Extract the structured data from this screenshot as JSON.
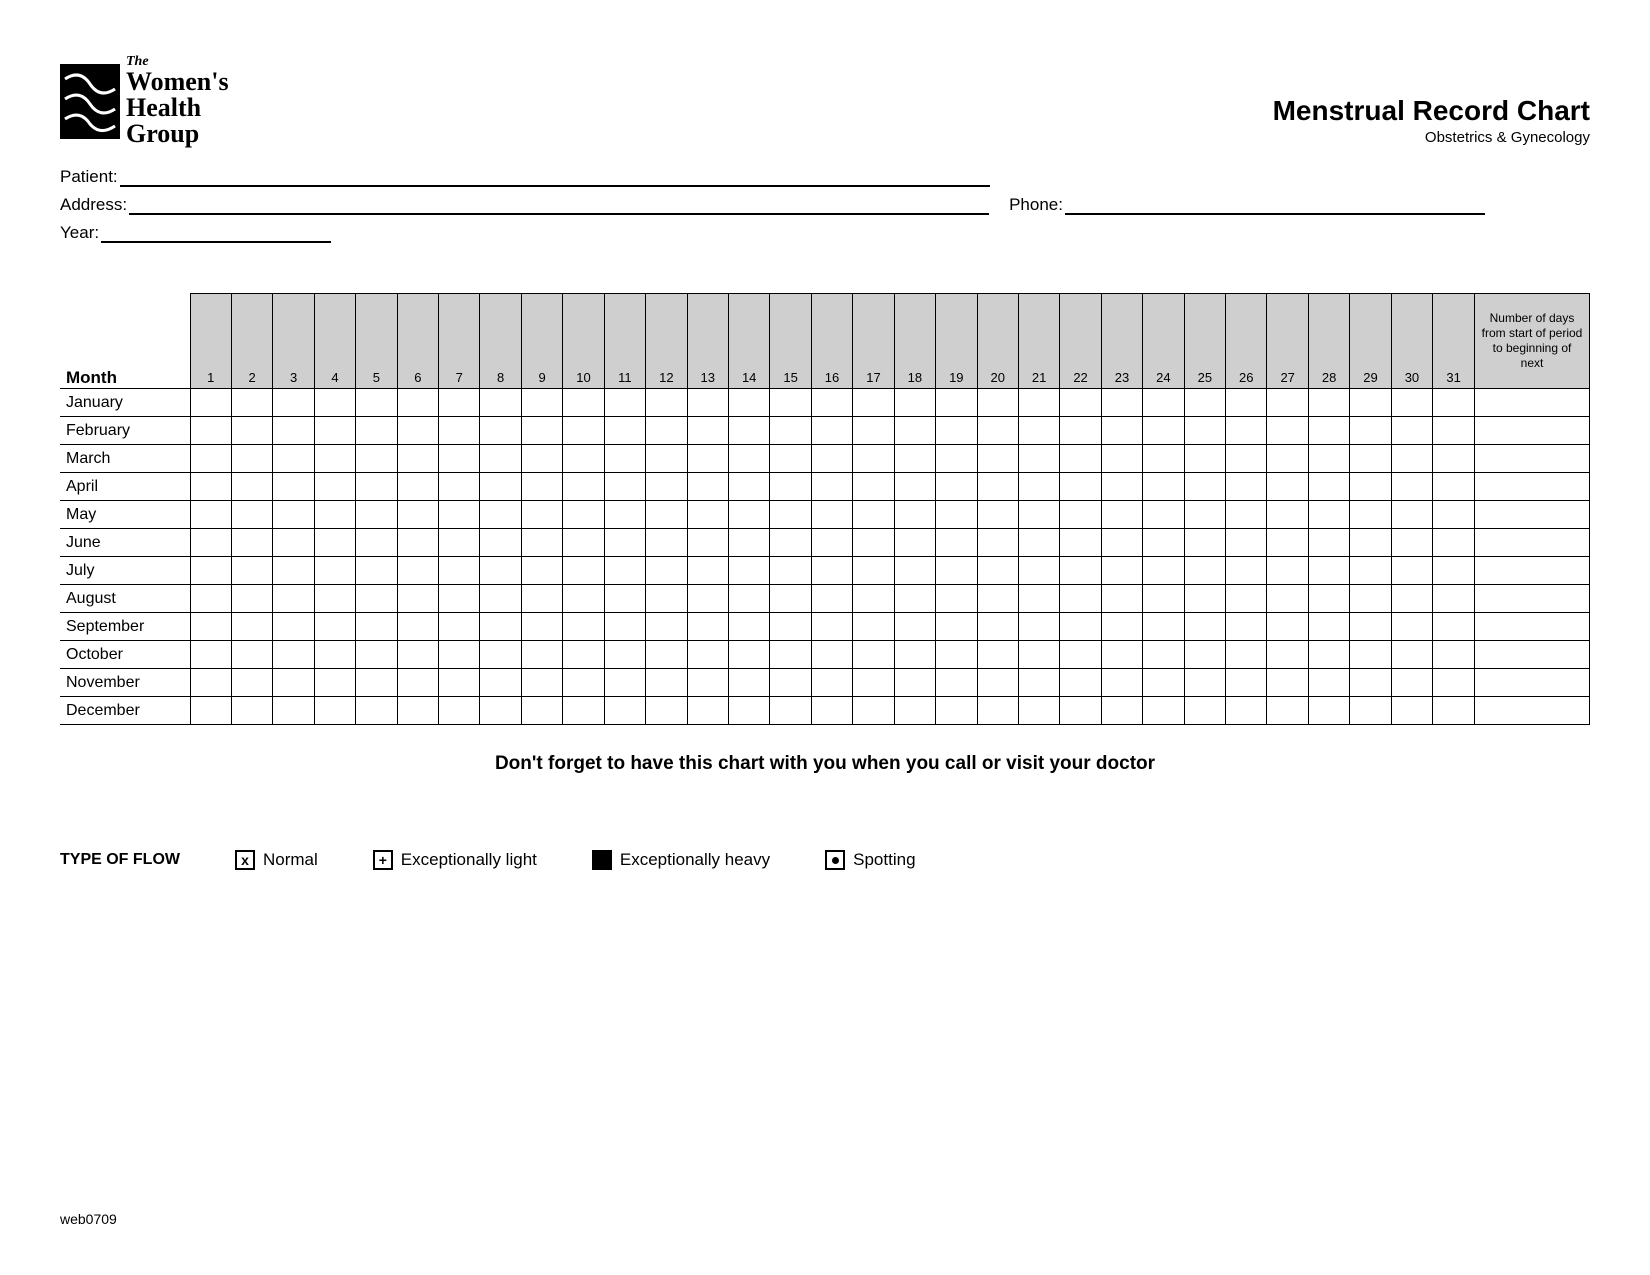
{
  "logo": {
    "line1": "The",
    "line2": "Women's",
    "line3": "Health",
    "line4": "Group"
  },
  "title": "Menstrual Record Chart",
  "subtitle": "Obstetrics & Gynecology",
  "fields": {
    "patient_label": "Patient:",
    "address_label": "Address:",
    "phone_label": "Phone:",
    "year_label": "Year:"
  },
  "table": {
    "month_header": "Month",
    "notes_header": "Number of days from start of period to beginning of next",
    "days": [
      "1",
      "2",
      "3",
      "4",
      "5",
      "6",
      "7",
      "8",
      "9",
      "10",
      "11",
      "12",
      "13",
      "14",
      "15",
      "16",
      "17",
      "18",
      "19",
      "20",
      "21",
      "22",
      "23",
      "24",
      "25",
      "26",
      "27",
      "28",
      "29",
      "30",
      "31"
    ],
    "months": [
      "January",
      "February",
      "March",
      "April",
      "May",
      "June",
      "July",
      "August",
      "September",
      "October",
      "November",
      "December"
    ],
    "header_bg": "#cfcfcf",
    "border_color": "#000000"
  },
  "reminder": "Don't forget to have this chart with you when you call or visit your doctor",
  "legend": {
    "title": "TYPE OF FLOW",
    "items": [
      {
        "symbol": "x",
        "label": "Normal"
      },
      {
        "symbol": "+",
        "label": "Exceptionally light"
      },
      {
        "symbol": "filled",
        "label": "Exceptionally heavy"
      },
      {
        "symbol": "dot",
        "label": "Spotting"
      }
    ]
  },
  "footer_code": "web0709"
}
